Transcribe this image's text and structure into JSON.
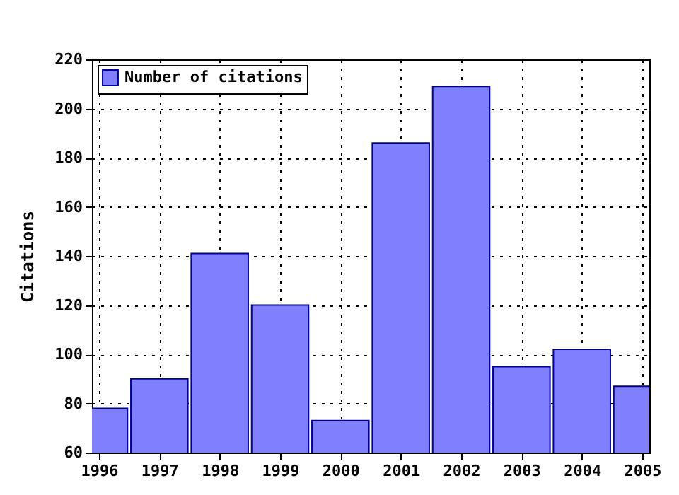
{
  "chart_data": {
    "type": "bar",
    "ylabel": "Citations",
    "x": [
      1996,
      1997,
      1998,
      1999,
      2000,
      2001,
      2002,
      2003,
      2004,
      2005
    ],
    "series": [
      {
        "name": "Number of citations",
        "color": "#8080ff",
        "values": [
          78,
          90,
          141,
          120,
          73,
          186,
          209,
          95,
          102,
          87
        ]
      }
    ],
    "xlim": [
      1996,
      2005
    ],
    "xticks": [
      1996,
      1997,
      1998,
      1999,
      2000,
      2001,
      2002,
      2003,
      2004,
      2005
    ],
    "ylim": [
      60,
      220
    ],
    "yticks": [
      60,
      80,
      100,
      120,
      140,
      160,
      180,
      200,
      220
    ],
    "grid": true,
    "legend": "top left"
  }
}
